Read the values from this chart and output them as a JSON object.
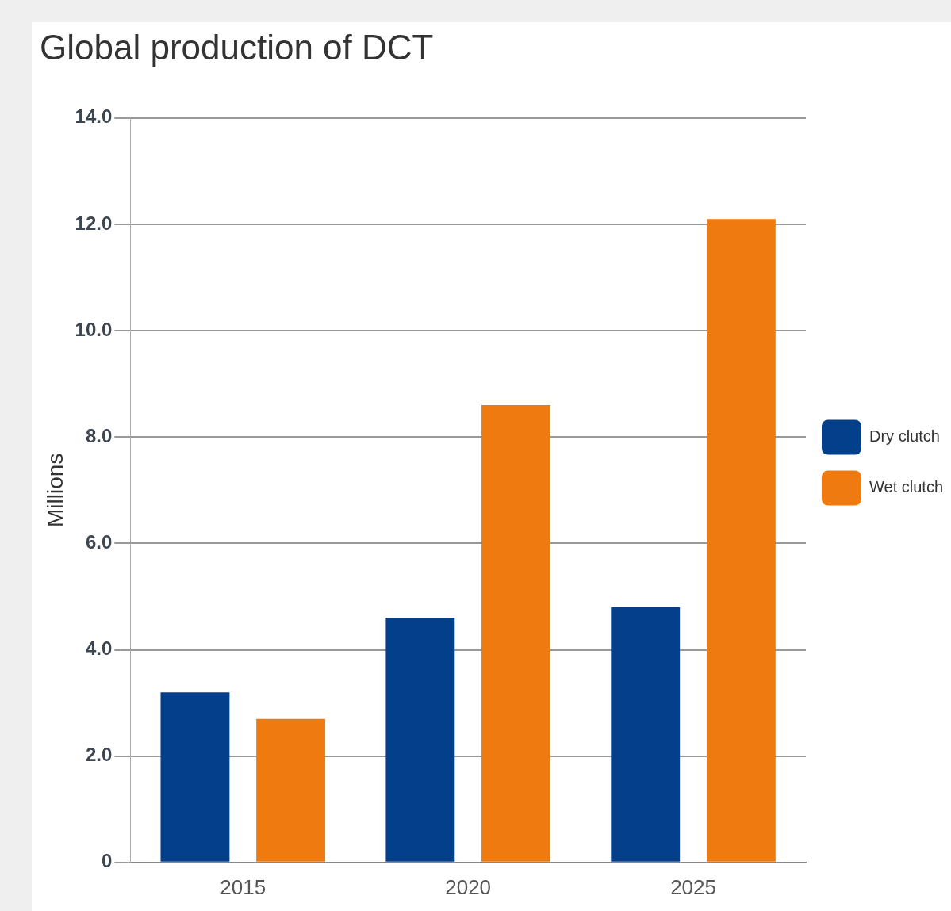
{
  "chart_data": {
    "type": "bar",
    "title": "Global production of DCT",
    "ylabel": "Millions",
    "categories": [
      "2015",
      "2020",
      "2025"
    ],
    "series": [
      {
        "name": "Dry clutch",
        "color": "#033f8a",
        "values": [
          3.2,
          4.6,
          4.8
        ]
      },
      {
        "name": "Wet clutch",
        "color": "#ef7a10",
        "values": [
          2.7,
          8.6,
          12.1
        ]
      }
    ],
    "ylim": [
      0,
      14
    ],
    "yticks": [
      {
        "value": 0,
        "label": "0"
      },
      {
        "value": 2,
        "label": "2.0"
      },
      {
        "value": 4,
        "label": "4.0"
      },
      {
        "value": 6,
        "label": "6.0"
      },
      {
        "value": 8,
        "label": "8.0"
      },
      {
        "value": 10,
        "label": "10.0"
      },
      {
        "value": 12,
        "label": "12.0"
      },
      {
        "value": 14,
        "label": "14.0"
      }
    ],
    "grid": "y",
    "legend": "right"
  }
}
